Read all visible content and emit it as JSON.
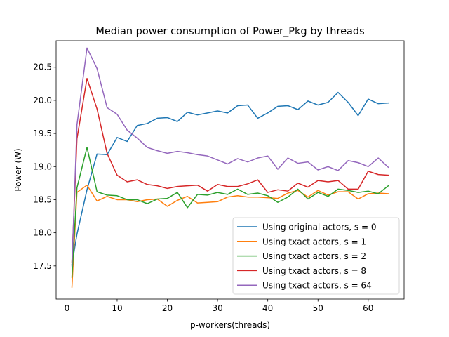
{
  "chart_data": {
    "type": "line",
    "title": "Median power consumption of Power_Pkg by threads",
    "xlabel": "p-workers(threads)",
    "ylabel": "Power (W)",
    "xlim": [
      -2.15,
      67.15
    ],
    "ylim": [
      17.0,
      20.9
    ],
    "x_ticks": [
      0,
      10,
      20,
      30,
      40,
      50,
      60
    ],
    "y_ticks": [
      17.5,
      18.0,
      18.5,
      19.0,
      19.5,
      20.0,
      20.5
    ],
    "y_tick_labels": [
      "17.5",
      "18.0",
      "18.5",
      "19.0",
      "19.5",
      "20.0",
      "20.5"
    ],
    "grid": false,
    "legend_position": "lower-right",
    "x": [
      1,
      2,
      4,
      6,
      8,
      10,
      12,
      14,
      16,
      18,
      20,
      22,
      24,
      26,
      28,
      30,
      32,
      34,
      36,
      38,
      40,
      42,
      44,
      46,
      48,
      50,
      52,
      54,
      56,
      58,
      60,
      62,
      64
    ],
    "series": [
      {
        "name": "Using original actors, s = 0",
        "color": "#1f77b4",
        "values": [
          17.52,
          17.98,
          18.65,
          19.19,
          19.18,
          19.44,
          19.38,
          19.62,
          19.65,
          19.73,
          19.74,
          19.68,
          19.82,
          19.78,
          19.81,
          19.84,
          19.81,
          19.92,
          19.93,
          19.73,
          19.81,
          19.91,
          19.92,
          19.86,
          19.99,
          19.93,
          19.97,
          20.12,
          19.97,
          19.77,
          20.02,
          19.95,
          19.96
        ]
      },
      {
        "name": "Using txact actors, s = 1",
        "color": "#ff7f0e",
        "values": [
          17.18,
          18.61,
          18.72,
          18.48,
          18.55,
          18.5,
          18.5,
          18.47,
          18.5,
          18.51,
          18.4,
          18.49,
          18.55,
          18.45,
          18.46,
          18.47,
          18.54,
          18.56,
          18.54,
          18.54,
          18.53,
          18.52,
          18.6,
          18.64,
          18.54,
          18.64,
          18.57,
          18.62,
          18.62,
          18.51,
          18.59,
          18.6,
          18.59
        ]
      },
      {
        "name": "Using txact actors, s = 2",
        "color": "#2ca02c",
        "values": [
          17.33,
          18.68,
          19.29,
          18.62,
          18.57,
          18.56,
          18.5,
          18.5,
          18.44,
          18.51,
          18.52,
          18.61,
          18.38,
          18.58,
          18.57,
          18.61,
          18.58,
          18.66,
          18.58,
          18.6,
          18.56,
          18.46,
          18.54,
          18.66,
          18.51,
          18.61,
          18.55,
          18.66,
          18.64,
          18.61,
          18.63,
          18.59,
          18.71
        ]
      },
      {
        "name": "Using txact actors, s = 8",
        "color": "#d62728",
        "values": [
          17.56,
          19.42,
          20.33,
          19.87,
          19.2,
          18.87,
          18.77,
          18.8,
          18.73,
          18.71,
          18.67,
          18.7,
          18.71,
          18.72,
          18.63,
          18.73,
          18.7,
          18.7,
          18.74,
          18.8,
          18.61,
          18.65,
          18.63,
          18.75,
          18.69,
          18.79,
          18.77,
          18.79,
          18.66,
          18.66,
          18.93,
          18.88,
          18.87
        ]
      },
      {
        "name": "Using txact actors, s = 64",
        "color": "#9467bd",
        "values": [
          17.5,
          19.63,
          20.79,
          20.48,
          19.89,
          19.79,
          19.55,
          19.43,
          19.29,
          19.24,
          19.2,
          19.23,
          19.21,
          19.18,
          19.16,
          19.1,
          19.04,
          19.12,
          19.07,
          19.13,
          19.16,
          18.96,
          19.13,
          19.05,
          19.07,
          18.95,
          19.0,
          18.94,
          19.09,
          19.06,
          19.0,
          19.13,
          18.99
        ]
      }
    ]
  }
}
